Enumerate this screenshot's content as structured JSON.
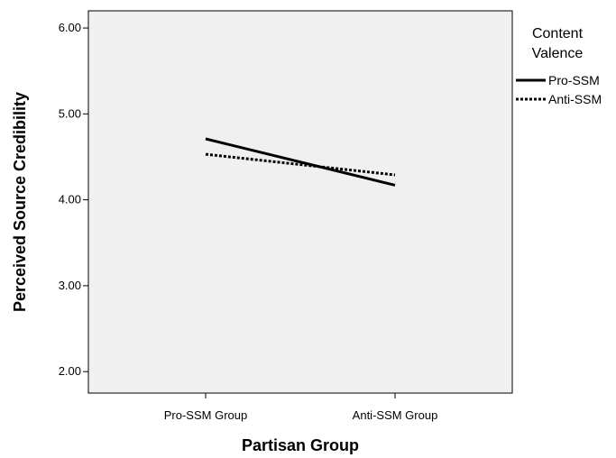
{
  "chart_data": {
    "type": "line",
    "categories": [
      "Pro-SSM Group",
      "Anti-SSM Group"
    ],
    "xlabel": "Partisan Group",
    "ylabel": "Perceived Source Credibility",
    "ylim": [
      1.75,
      6.2
    ],
    "yticks": [
      "2.00",
      "3.00",
      "4.00",
      "5.00",
      "6.00"
    ],
    "grid": false,
    "plot_background": "#f0f0f0",
    "legend": {
      "title_lines": [
        "Content",
        "Valence"
      ],
      "placement": "right"
    },
    "series": [
      {
        "name": "Pro-SSM",
        "values": [
          4.71,
          4.17
        ],
        "style": "solid",
        "color": "#000000"
      },
      {
        "name": "Anti-SSM",
        "values": [
          4.53,
          4.29
        ],
        "style": "dotted",
        "color": "#000000"
      }
    ]
  }
}
